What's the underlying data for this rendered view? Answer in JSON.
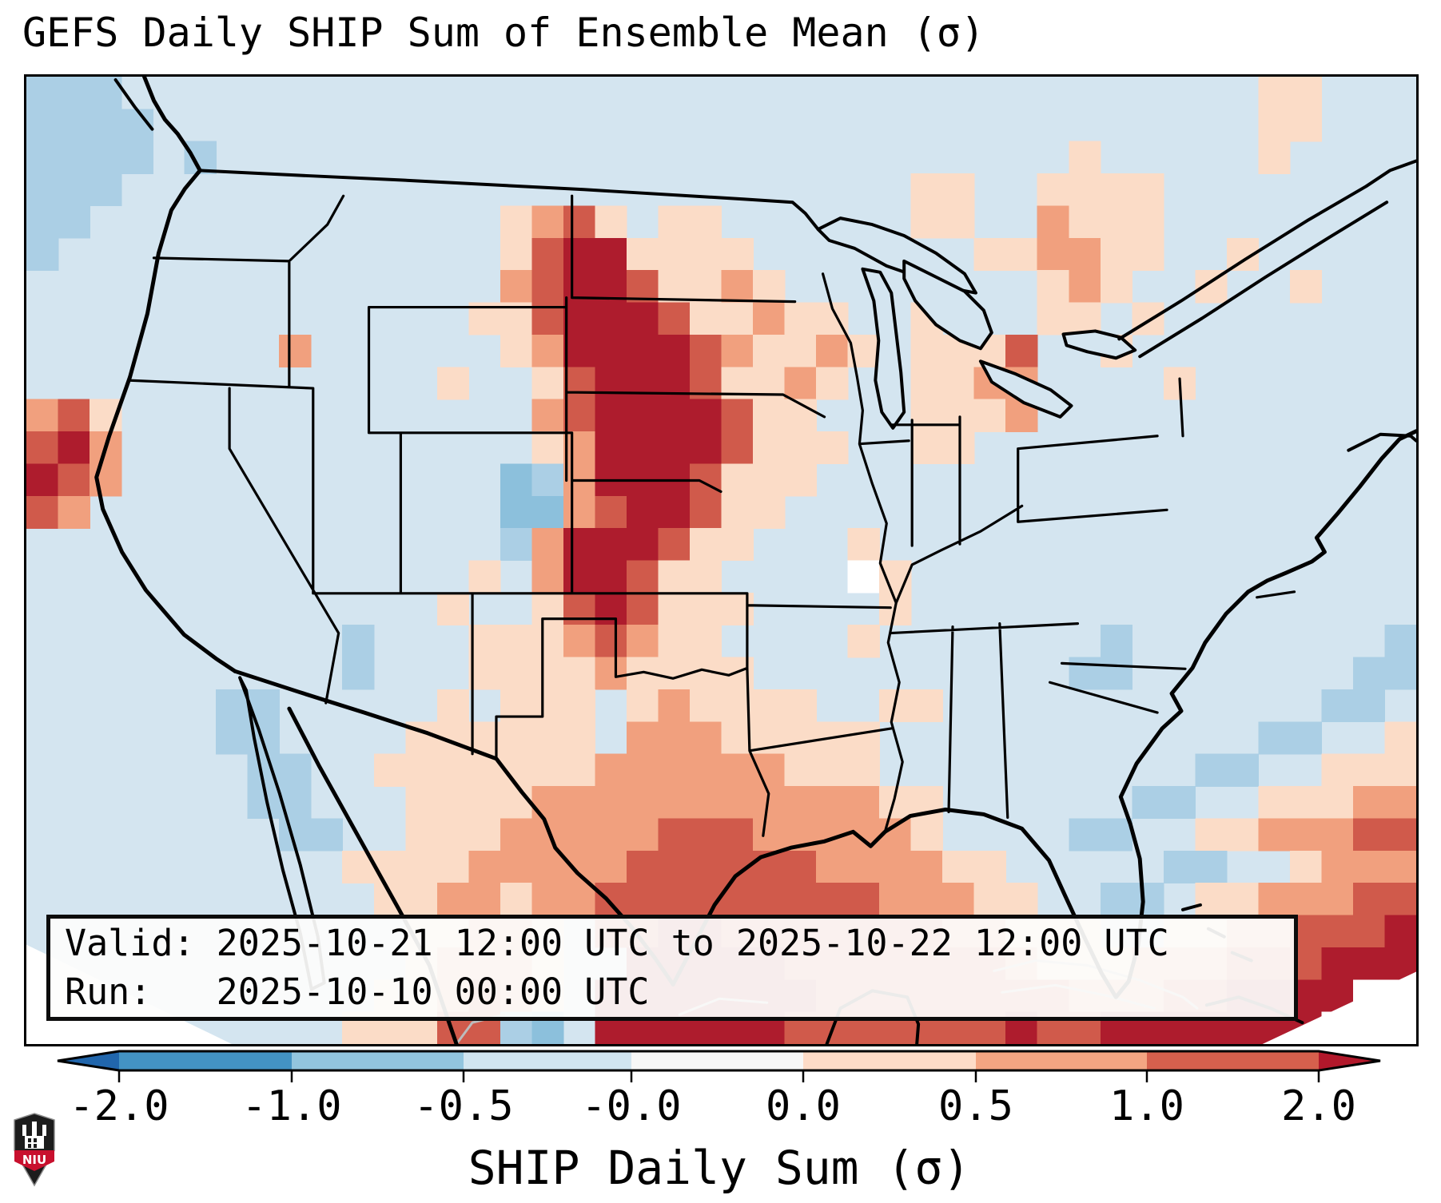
{
  "title": "GEFS Daily SHIP Sum of Ensemble Mean (σ)",
  "info_box": {
    "valid_line": "Valid: 2025-10-21 12:00 UTC to 2025-10-22 12:00 UTC",
    "run_line": "Run:   2025-10-10 00:00 UTC"
  },
  "logo": {
    "text": "NIU"
  },
  "chart_data": {
    "type": "heatmap",
    "title": "GEFS Daily SHIP Sum of Ensemble Mean (σ)",
    "valid": "2025-10-21 12:00 UTC to 2025-10-22 12:00 UTC",
    "run": "2025-10-10 00:00 UTC",
    "region": "CONUS and surrounding waters",
    "colorbar": {
      "label": "SHIP Daily Sum (σ)",
      "tick_labels": [
        "-2.0",
        "-1.0",
        "-0.5",
        "-0.0",
        "0.0",
        "0.5",
        "1.0",
        "2.0"
      ],
      "segment_colors": [
        "#4393c3",
        "#92c5de",
        "#d1e5f0",
        "#f7f7f7",
        "#fddbc7",
        "#f4a582",
        "#d6604d"
      ],
      "under_arrow_color": "#2166ac",
      "over_arrow_color": "#b2182b",
      "scale": "diverging red-blue, nonlinear tick spacing, arrow extensions both ends"
    },
    "grid": {
      "cols": 44,
      "rows": 30,
      "palette": {
        ".": "#d4e5f0",
        "b": "#abcfe5",
        "B": "#8cc0dc",
        "p": "#fbdcc7",
        "s": "#f1a07e",
        "r": "#d05a4b",
        "R": "#ae1c2d",
        "w": "#ffffff"
      },
      "legend": {
        ".": "about -0.0 to -0.5 sigma (light blue background)",
        "b": "about -0.5 to -1.0 sigma",
        "B": "about -1.0 to -2.0 sigma",
        "p": "about 0.0 to +0.5 sigma",
        "s": "about +0.5 to +1.0 sigma",
        "r": "about +1.0 to +2.0 sigma",
        "R": "greater than +2.0 sigma",
        "w": "outside data domain"
      },
      "rows_encoded": [
        "bbb....................................pp...",
        "bbbb...................................pp...",
        "bbbb.b...........................p.....p....",
        "bbb.........................pp..pppp........",
        "bb.............psrp.pp......pp..sppp........",
        "b..............prRRpppp.......ppsspp..p.....",
        "...............srRRrppsp........psp..p..p...",
        "..............pprRRRrppspp..p...pp.p........",
        "........s......psRRRRrsppsp.pppr..p.........",
        ".............p..prRRRrppsp..ppss....p.......",
        "srp.............srRRRRrpp...ppps............",
        "rRs.............psRRRRrppp..pp..............",
        "Rrs............BbsRRRrppp...................",
        "rs.............BBsrRRrpp....................",
        "...............bsRRRrpp...p.................",
        "..............p.sRRrpp....wp................",
        ".............p..prRrppp....p................",
        "..........b...pppsrspp....p.......b........b",
        "..........b...ppppspppp..........bb.......bb",
        "......bb.....p.ppp.pspppp..pp............bb.",
        "......bb....pppppp.sssppppp............bb..p",
        ".......bb..pppppppssssssppp..........bb..ppp",
        ".......bb...ppppssssssssssspp......bb..pppss",
        "........bb..pppsssssrrrsssssp....bb..ppsssrr",
        "..........ppppsssssrrrrrrsssspp.....bb..psss",
        "...........ppsspssrrrrrrrrrssspp..bb.ppsssrr",
        "............ppssp.rrRRrrrrrrrssppp..ppssrrrR",
        "............psssp..RRRRRrrrrrrrspppsssrrrRRR",
        "...........ppsrsp.RRRRRRRrrrrrrrrsssrrRRRRww",
        "..........ppprrbB.RRRRRRrrrrrrrRrrRRRRRRRwww"
      ]
    },
    "features": [
      "Large >2-sigma anomaly swath over the central Plains (western Dakotas, Nebraska, Kansas, Oklahoma/Texas panhandle)",
      "Secondary >1-sigma cluster on the central California coast",
      "Broad 0 to +1 sigma region over Texas, the Gulf Coast states and the upper Midwest / Great Lakes",
      "Dark red (>2 sigma) band along the southern Gulf of Mexico / Caribbean edge of the domain",
      "Weak negative (light blue) values over the oceans and most remaining land"
    ]
  }
}
